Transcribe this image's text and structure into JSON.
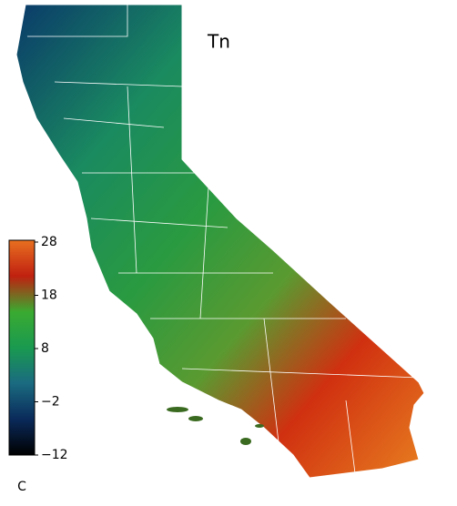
{
  "map": {
    "title": "Tn",
    "colorbar": {
      "lim": [
        -12,
        28
      ],
      "ticks": [
        28,
        18,
        8,
        {
          "value": -2,
          "label": "−2"
        },
        {
          "value": -12,
          "label": "−12"
        }
      ],
      "unit": "C",
      "colors": [
        "#000000",
        "#0a2a5a",
        "#1a6a80",
        "#1a9a50",
        "#3aaa30",
        "#c02010",
        "#e87020"
      ]
    }
  }
}
